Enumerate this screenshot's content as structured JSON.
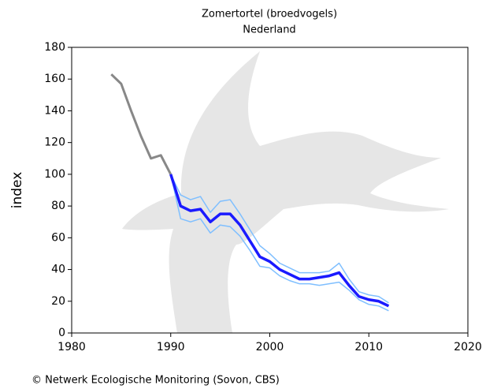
{
  "chart_data": {
    "type": "line",
    "title": "Zomertortel (broedvogels)",
    "subtitle": "Nederland",
    "y_label": "index",
    "footer": "© Netwerk Ecologische Monitoring (Sovon, CBS)",
    "xlim": [
      1980,
      2020
    ],
    "xticks": [
      1980,
      1990,
      2000,
      2010,
      2020
    ],
    "ylim": [
      0,
      180
    ],
    "yticks": [
      0,
      20,
      40,
      60,
      80,
      100,
      120,
      140,
      160,
      180
    ],
    "series": [
      {
        "color": "#888888",
        "width": 3,
        "x": [
          1984,
          1985,
          1986,
          1987,
          1988,
          1989,
          1990
        ],
        "values": [
          163,
          157,
          140,
          124,
          110,
          112,
          100
        ]
      },
      {
        "color": "#7fbfff",
        "width": 1.5,
        "x": [
          1990,
          1991,
          1992,
          1993,
          1994,
          1995,
          1996,
          1997,
          1998,
          1999,
          2000,
          2001,
          2002,
          2003,
          2004,
          2005,
          2006,
          2007,
          2008,
          2009,
          2010,
          2011,
          2012
        ],
        "values": [
          100,
          87,
          84,
          86,
          76,
          83,
          84,
          75,
          65,
          55,
          50,
          44,
          41,
          38,
          38,
          38,
          39,
          44,
          34,
          26,
          24,
          23,
          19
        ]
      },
      {
        "color": "#7fbfff",
        "width": 1.5,
        "x": [
          1990,
          1991,
          1992,
          1993,
          1994,
          1995,
          1996,
          1997,
          1998,
          1999,
          2000,
          2001,
          2002,
          2003,
          2004,
          2005,
          2006,
          2007,
          2008,
          2009,
          2010,
          2011,
          2012
        ],
        "values": [
          100,
          72,
          70,
          72,
          63,
          68,
          67,
          61,
          52,
          42,
          41,
          36,
          33,
          31,
          31,
          30,
          31,
          32,
          27,
          21,
          18,
          17,
          14
        ]
      },
      {
        "color": "#1a1aff",
        "width": 3.5,
        "x": [
          1990,
          1991,
          1992,
          1993,
          1994,
          1995,
          1996,
          1997,
          1998,
          1999,
          2000,
          2001,
          2002,
          2003,
          2004,
          2005,
          2006,
          2007,
          2008,
          2009,
          2010,
          2011,
          2012
        ],
        "values": [
          100,
          80,
          77,
          78,
          70,
          75,
          75,
          68,
          58,
          48,
          45,
          40,
          37,
          34,
          34,
          35,
          36,
          38,
          30,
          23,
          21,
          20,
          17
        ]
      }
    ]
  }
}
